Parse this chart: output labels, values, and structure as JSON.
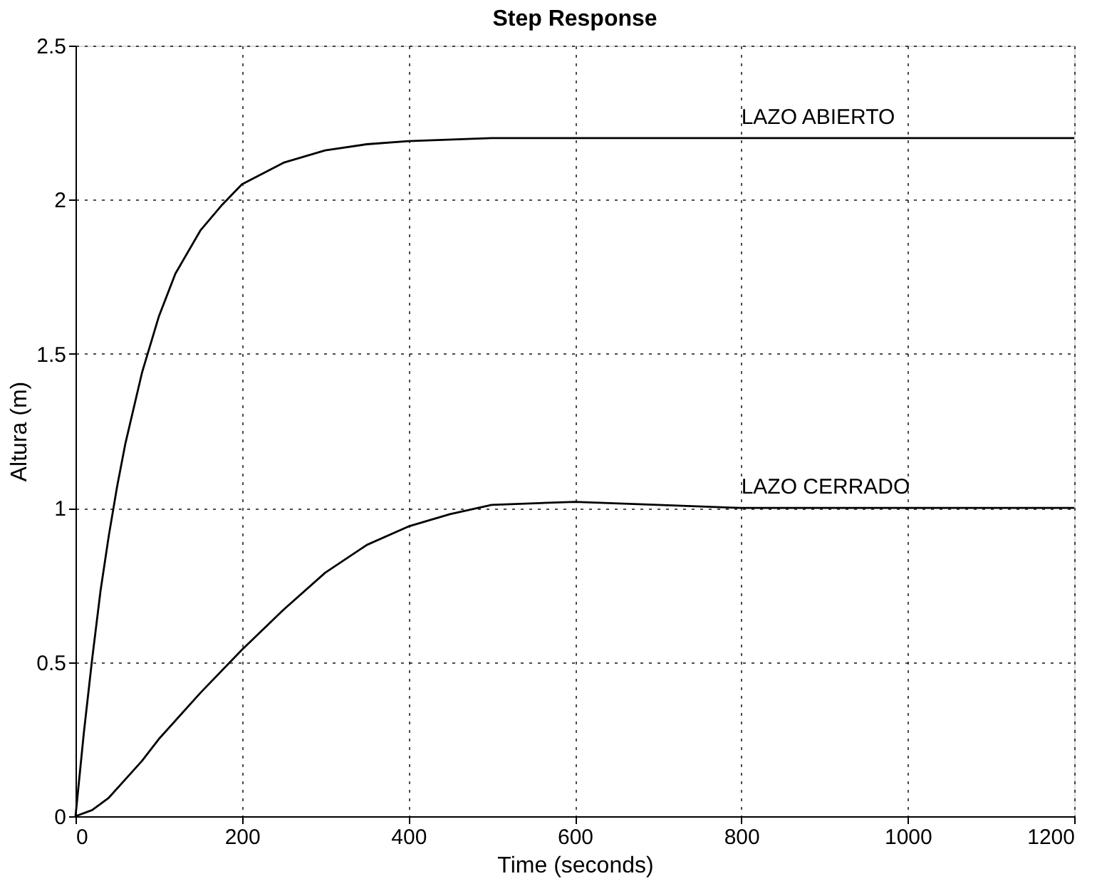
{
  "chart_data": {
    "type": "line",
    "title": "Step Response",
    "xlabel": "Time (seconds)",
    "ylabel": "Altura (m)",
    "xlim": [
      0,
      1200
    ],
    "xticks": [
      0,
      200,
      400,
      600,
      800,
      1000,
      1200
    ],
    "ylim": [
      0,
      2.5
    ],
    "yticks": [
      0,
      0.5,
      1,
      1.5,
      2,
      2.5
    ],
    "grid": true,
    "line_style": "solid",
    "marker": "none",
    "series": [
      {
        "color": "#000000",
        "x": [
          0,
          10,
          20,
          30,
          40,
          50,
          60,
          80,
          100,
          120,
          150,
          175,
          200,
          250,
          300,
          350,
          400,
          500,
          600,
          800,
          1000,
          1200
        ],
        "values": [
          0,
          0.27,
          0.51,
          0.73,
          0.91,
          1.07,
          1.21,
          1.44,
          1.62,
          1.76,
          1.9,
          1.98,
          2.05,
          2.12,
          2.16,
          2.18,
          2.19,
          2.2,
          2.2,
          2.2,
          2.2,
          2.2
        ]
      },
      {
        "color": "#000000",
        "x": [
          0,
          20,
          40,
          60,
          80,
          100,
          150,
          200,
          250,
          300,
          350,
          400,
          450,
          500,
          600,
          700,
          800,
          1000,
          1200
        ],
        "values": [
          0,
          0.02,
          0.06,
          0.12,
          0.18,
          0.25,
          0.4,
          0.54,
          0.67,
          0.79,
          0.88,
          0.94,
          0.98,
          1.01,
          1.02,
          1.01,
          1.0,
          1.0,
          1.0
        ]
      }
    ],
    "annotations": [
      {
        "text": "LAZO ABIERTO",
        "x": 800,
        "y": 2.2
      },
      {
        "text": "LAZO CERRADO",
        "x": 800,
        "y": 1.0
      }
    ]
  }
}
